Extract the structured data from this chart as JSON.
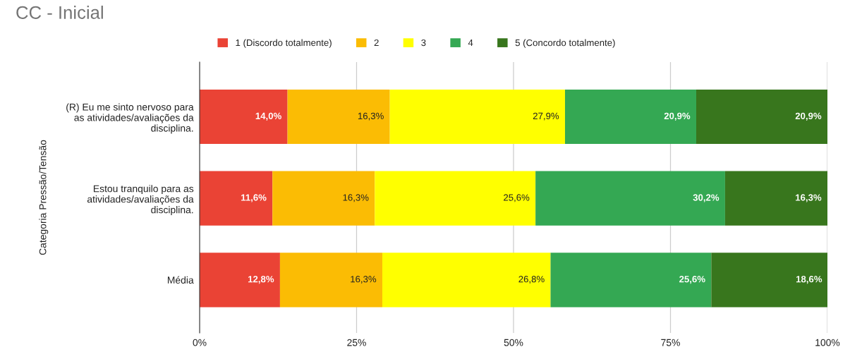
{
  "chart_data": {
    "type": "bar",
    "orientation": "horizontal",
    "stacked": true,
    "title": "CC - Inicial",
    "ylabel": "Categoria Pressão/Tensão",
    "categories": [
      "(R) Eu me sinto nervoso para\nas atividades/avaliações da\ndisciplina.",
      "Estou tranquilo para as\natividades/avaliações da\ndisciplina.",
      "Média"
    ],
    "series": [
      {
        "name": "1 (Discordo totalmente)",
        "color": "#ea4335",
        "values": [
          14.0,
          11.6,
          12.8
        ],
        "value_labels": [
          "14,0%",
          "11,6%",
          "12,8%"
        ]
      },
      {
        "name": "2",
        "color": "#fbbc04",
        "values": [
          16.3,
          16.3,
          16.3
        ],
        "value_labels": [
          "16,3%",
          "16,3%",
          "16,3%"
        ]
      },
      {
        "name": "3",
        "color": "#ffff00",
        "values": [
          27.9,
          25.6,
          26.8
        ],
        "value_labels": [
          "27,9%",
          "25,6%",
          "26,8%"
        ]
      },
      {
        "name": "4",
        "color": "#34a853",
        "values": [
          20.9,
          30.2,
          25.6
        ],
        "value_labels": [
          "20,9%",
          "30,2%",
          "25,6%"
        ]
      },
      {
        "name": "5 (Concordo totalmente)",
        "color": "#38761d",
        "values": [
          20.9,
          16.3,
          18.6
        ],
        "value_labels": [
          "20,9%",
          "16,3%",
          "18,6%"
        ]
      }
    ],
    "xlim": [
      0,
      100
    ],
    "xticks": [
      {
        "value": 0,
        "label": "0%"
      },
      {
        "value": 25,
        "label": "25%"
      },
      {
        "value": 50,
        "label": "50%"
      },
      {
        "value": 75,
        "label": "75%"
      },
      {
        "value": 100,
        "label": "100%"
      }
    ],
    "grid": "x",
    "legend": "top"
  }
}
